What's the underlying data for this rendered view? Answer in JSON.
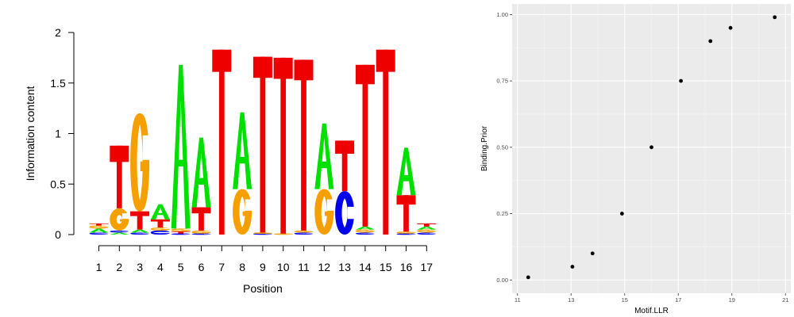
{
  "colors": {
    "A": "#00e000",
    "C": "#0000ee",
    "G": "#f5a000",
    "T": "#ee0000",
    "panel_bg": "#ebebeb",
    "grid_major": "#ffffff",
    "grid_minor": "#f5f5f5",
    "point": "#000000",
    "gg_text": "#4d4d4d"
  },
  "chart_data": [
    {
      "type": "sequence-logo",
      "xlabel": "Position",
      "ylabel": "Information content",
      "ylim": [
        0,
        2
      ],
      "ytick_labels": [
        "0",
        "0.5",
        "1",
        "1.5",
        "2"
      ],
      "positions": [
        {
          "label": "1",
          "letters": [
            [
              "C",
              0.02
            ],
            [
              "A",
              0.04
            ],
            [
              "G",
              0.03
            ],
            [
              "T",
              0.02
            ]
          ]
        },
        {
          "label": "2",
          "letters": [
            [
              "A",
              0.02
            ],
            [
              "C",
              0.02
            ],
            [
              "G",
              0.22
            ],
            [
              "T",
              0.62
            ]
          ]
        },
        {
          "label": "3",
          "letters": [
            [
              "C",
              0.02
            ],
            [
              "A",
              0.03
            ],
            [
              "T",
              0.18
            ],
            [
              "G",
              0.97
            ]
          ]
        },
        {
          "label": "4",
          "letters": [
            [
              "C",
              0.04
            ],
            [
              "G",
              0.03
            ],
            [
              "T",
              0.08
            ],
            [
              "A",
              0.15
            ]
          ]
        },
        {
          "label": "5",
          "letters": [
            [
              "C",
              0.01
            ],
            [
              "T",
              0.02
            ],
            [
              "G",
              0.03
            ],
            [
              "A",
              1.62
            ]
          ]
        },
        {
          "label": "6",
          "letters": [
            [
              "C",
              0.01
            ],
            [
              "G",
              0.03
            ],
            [
              "T",
              0.23
            ],
            [
              "A",
              0.69
            ]
          ]
        },
        {
          "label": "7",
          "letters": [
            [
              "T",
              1.83
            ]
          ]
        },
        {
          "label": "8",
          "letters": [
            [
              "G",
              0.45
            ],
            [
              "A",
              0.76
            ]
          ]
        },
        {
          "label": "9",
          "letters": [
            [
              "C",
              0.01
            ],
            [
              "G",
              0.01
            ],
            [
              "T",
              1.74
            ]
          ]
        },
        {
          "label": "10",
          "letters": [
            [
              "G",
              0.01
            ],
            [
              "T",
              1.74
            ]
          ]
        },
        {
          "label": "11",
          "letters": [
            [
              "C",
              0.02
            ],
            [
              "G",
              0.02
            ],
            [
              "T",
              1.69
            ]
          ]
        },
        {
          "label": "12",
          "letters": [
            [
              "G",
              0.45
            ],
            [
              "A",
              0.65
            ]
          ]
        },
        {
          "label": "13",
          "letters": [
            [
              "C",
              0.43
            ],
            [
              "T",
              0.5
            ]
          ]
        },
        {
          "label": "14",
          "letters": [
            [
              "C",
              0.02
            ],
            [
              "G",
              0.03
            ],
            [
              "A",
              0.03
            ],
            [
              "T",
              1.6
            ]
          ]
        },
        {
          "label": "15",
          "letters": [
            [
              "T",
              1.83
            ]
          ]
        },
        {
          "label": "16",
          "letters": [
            [
              "C",
              0.01
            ],
            [
              "G",
              0.02
            ],
            [
              "T",
              0.36
            ],
            [
              "A",
              0.47
            ]
          ]
        },
        {
          "label": "17",
          "letters": [
            [
              "C",
              0.02
            ],
            [
              "G",
              0.03
            ],
            [
              "A",
              0.03
            ],
            [
              "T",
              0.03
            ]
          ]
        }
      ]
    },
    {
      "type": "scatter",
      "xlabel": "Motif.LLR",
      "ylabel": "Binding.Prior",
      "xlim": [
        10.8,
        21.2
      ],
      "ylim": [
        -0.05,
        1.04
      ],
      "x_ticks": [
        11,
        13,
        15,
        17,
        19,
        21
      ],
      "x_tick_labels": [
        "11",
        "13",
        "15",
        "17",
        "19",
        "21"
      ],
      "y_ticks": [
        0,
        0.25,
        0.5,
        0.75,
        1
      ],
      "y_tick_labels": [
        "0.00",
        "0.25",
        "0.50",
        "0.75",
        "1.00"
      ],
      "points": [
        {
          "x": 11.4,
          "y": 0.01
        },
        {
          "x": 13.05,
          "y": 0.05
        },
        {
          "x": 13.8,
          "y": 0.1
        },
        {
          "x": 14.9,
          "y": 0.25
        },
        {
          "x": 16.0,
          "y": 0.5
        },
        {
          "x": 17.1,
          "y": 0.75
        },
        {
          "x": 18.2,
          "y": 0.9
        },
        {
          "x": 18.95,
          "y": 0.95
        },
        {
          "x": 20.6,
          "y": 0.99
        }
      ]
    }
  ]
}
